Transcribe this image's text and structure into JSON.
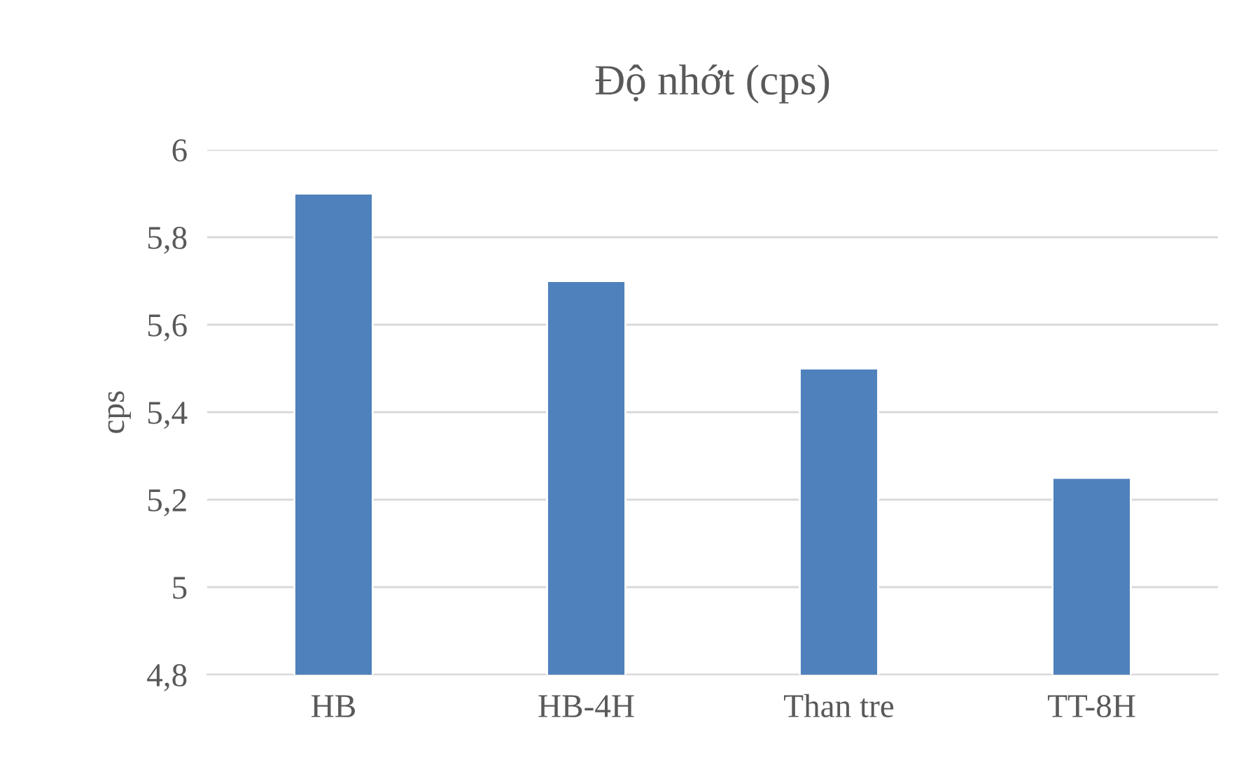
{
  "chart_data": {
    "type": "bar",
    "title": "Độ nhớt (cps)",
    "ylabel": "cps",
    "categories": [
      "HB",
      "HB-4H",
      "Than tre",
      "TT-8H"
    ],
    "values": [
      5.9,
      5.7,
      5.5,
      5.25
    ],
    "color": "#4f81bd",
    "ylim": [
      4.8,
      6
    ],
    "yticks": [
      {
        "value": 4.8,
        "label": "4,8"
      },
      5,
      {
        "value": 5.2,
        "label": "5,2"
      },
      {
        "value": 5.4,
        "label": "5,4"
      },
      {
        "value": 5.6,
        "label": "5,6"
      },
      {
        "value": 5.8,
        "label": "5,8"
      },
      6
    ],
    "grid": "y",
    "legend": false
  }
}
